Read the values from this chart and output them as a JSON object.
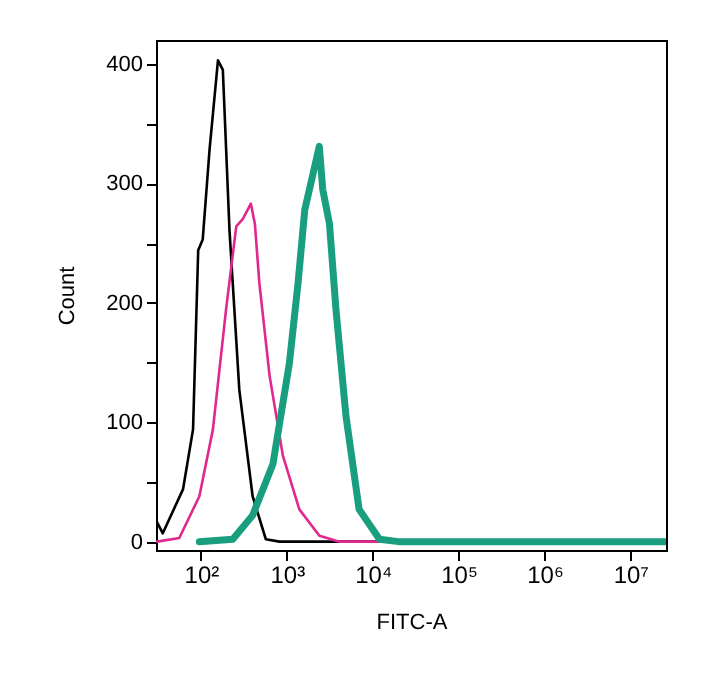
{
  "chart_data": {
    "type": "line",
    "xlabel": "FITC-A",
    "ylabel": "Count",
    "log": "x",
    "xlim": [
      30,
      26000000
    ],
    "ylim": [
      -7,
      420
    ],
    "xticks": [
      {
        "value": 100,
        "label": "10²"
      },
      {
        "value": 1000,
        "label": "10³"
      },
      {
        "value": 10000,
        "label": "10⁴"
      },
      {
        "value": 100000,
        "label": "10⁵"
      },
      {
        "value": 1000000,
        "label": "10⁶"
      },
      {
        "value": 10000000,
        "label": "10⁷"
      }
    ],
    "yticks": [
      0,
      {
        "value": 50,
        "label": null
      },
      100,
      {
        "value": 150,
        "label": null
      },
      200,
      {
        "value": 250,
        "label": null
      },
      300,
      {
        "value": 350,
        "label": null
      },
      400
    ],
    "grid": false,
    "marker": "none",
    "line_style": "solid",
    "series": [
      {
        "color": "#000000",
        "x": [
          30,
          36,
          62,
          81,
          93,
          105,
          126,
          158,
          180,
          215,
          280,
          400,
          570,
          820,
          26000000
        ],
        "values": [
          18,
          7,
          44,
          94,
          244,
          253,
          328,
          403,
          395,
          261,
          127,
          38,
          2,
          0,
          0
        ]
      },
      {
        "color": "#e0288f",
        "x": [
          31,
          56,
          96,
          138,
          196,
          258,
          307,
          382,
          425,
          480,
          630,
          900,
          1400,
          2400,
          4100,
          26000000
        ],
        "values": [
          0,
          3,
          38,
          94,
          194,
          264,
          270,
          283,
          266,
          216,
          139,
          72,
          27,
          5,
          0,
          0
        ]
      },
      {
        "color": "#1a9e80",
        "x": [
          96,
          235,
          400,
          690,
          1070,
          1350,
          1620,
          1990,
          2390,
          2620,
          3140,
          3740,
          4890,
          6950,
          12000,
          20000,
          26000000
        ],
        "values": [
          0,
          2,
          22,
          65,
          149,
          216,
          278,
          306,
          331,
          295,
          266,
          194,
          105,
          27,
          2,
          0,
          0
        ]
      }
    ]
  }
}
